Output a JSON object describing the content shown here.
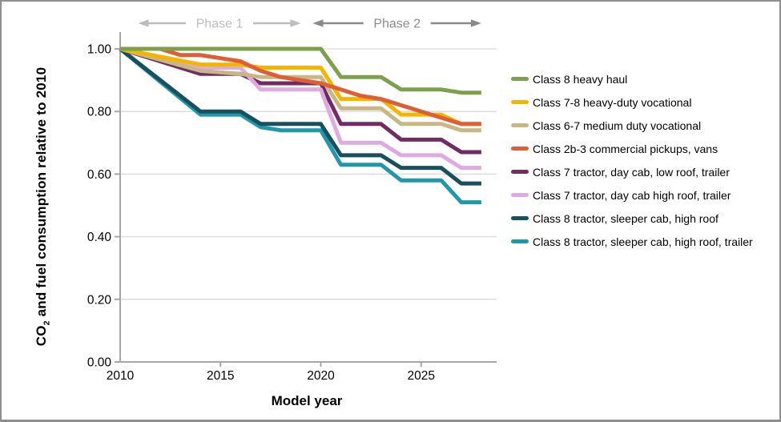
{
  "figure": {
    "y_axis_title": {
      "pre": "CO",
      "sub": "2",
      "post": " and fuel consumption relative to 2010"
    },
    "x_axis_title": "Model year"
  },
  "chart_data": {
    "type": "line",
    "title": "",
    "xlabel": "Model year",
    "ylabel": "CO2 and fuel consumption relative to 2010",
    "xlim": [
      2010,
      2028.8
    ],
    "ylim": [
      0.0,
      1.0
    ],
    "x_ticks": [
      2010,
      2015,
      2020,
      2025
    ],
    "y_ticks": [
      0.0,
      0.2,
      0.4,
      0.6,
      0.8,
      1.0
    ],
    "grid": "horizontal",
    "legend_position": "right",
    "axis_color": "#a6a6a6",
    "gridline_color": "#d9d9d9",
    "phases": [
      {
        "label": "Phase 1",
        "x_start": 2010.9,
        "x_end": 2019.0,
        "color": "#bdbdbd"
      },
      {
        "label": "Phase 2",
        "x_start": 2019.6,
        "x_end": 2028.0,
        "color": "#8a8a8a"
      }
    ],
    "series": [
      {
        "name": "Class 8 heavy haul",
        "color": "#7da04c",
        "points": [
          [
            2010,
            1.0
          ],
          [
            2020,
            1.0
          ],
          [
            2021,
            0.91
          ],
          [
            2023,
            0.91
          ],
          [
            2024,
            0.87
          ],
          [
            2026,
            0.87
          ],
          [
            2027,
            0.86
          ],
          [
            2028,
            0.86
          ]
        ]
      },
      {
        "name": "Class 7-8 heavy-duty vocational",
        "color": "#f2b600",
        "points": [
          [
            2010,
            1.0
          ],
          [
            2014,
            0.95
          ],
          [
            2016,
            0.95
          ],
          [
            2017,
            0.94
          ],
          [
            2020,
            0.94
          ],
          [
            2021,
            0.84
          ],
          [
            2023,
            0.84
          ],
          [
            2024,
            0.79
          ],
          [
            2026,
            0.79
          ],
          [
            2027,
            0.76
          ],
          [
            2028,
            0.76
          ]
        ]
      },
      {
        "name": "Class 6-7 medium duty vocational",
        "color": "#c8b784",
        "points": [
          [
            2010,
            1.0
          ],
          [
            2014,
            0.93
          ],
          [
            2016,
            0.92
          ],
          [
            2017,
            0.91
          ],
          [
            2020,
            0.91
          ],
          [
            2021,
            0.81
          ],
          [
            2023,
            0.81
          ],
          [
            2024,
            0.76
          ],
          [
            2026,
            0.76
          ],
          [
            2027,
            0.74
          ],
          [
            2028,
            0.74
          ]
        ]
      },
      {
        "name": "Class 2b-3 commercial pickups, vans",
        "color": "#dd5f38",
        "points": [
          [
            2010,
            1.0
          ],
          [
            2012,
            1.0
          ],
          [
            2013,
            0.98
          ],
          [
            2014,
            0.98
          ],
          [
            2015,
            0.97
          ],
          [
            2016,
            0.96
          ],
          [
            2017,
            0.93
          ],
          [
            2018,
            0.91
          ],
          [
            2019,
            0.9
          ],
          [
            2020,
            0.89
          ],
          [
            2021,
            0.87
          ],
          [
            2022,
            0.85
          ],
          [
            2023,
            0.84
          ],
          [
            2024,
            0.82
          ],
          [
            2025,
            0.8
          ],
          [
            2026,
            0.78
          ],
          [
            2027,
            0.76
          ],
          [
            2028,
            0.76
          ]
        ]
      },
      {
        "name": "Class 7 tractor, day cab, low roof, trailer",
        "color": "#722b63",
        "points": [
          [
            2010,
            1.0
          ],
          [
            2014,
            0.92
          ],
          [
            2016,
            0.92
          ],
          [
            2017,
            0.89
          ],
          [
            2020,
            0.89
          ],
          [
            2021,
            0.76
          ],
          [
            2023,
            0.76
          ],
          [
            2024,
            0.71
          ],
          [
            2026,
            0.71
          ],
          [
            2027,
            0.67
          ],
          [
            2028,
            0.67
          ]
        ]
      },
      {
        "name": "Class 7 tractor, day cab high roof, trailer",
        "color": "#dfaae1",
        "points": [
          [
            2010,
            1.0
          ],
          [
            2014,
            0.94
          ],
          [
            2016,
            0.94
          ],
          [
            2017,
            0.87
          ],
          [
            2020,
            0.87
          ],
          [
            2021,
            0.7
          ],
          [
            2023,
            0.7
          ],
          [
            2024,
            0.66
          ],
          [
            2026,
            0.66
          ],
          [
            2027,
            0.62
          ],
          [
            2028,
            0.62
          ]
        ]
      },
      {
        "name": "Class 8 tractor, sleeper cab, high roof",
        "color": "#19505e",
        "points": [
          [
            2010,
            1.0
          ],
          [
            2014,
            0.8
          ],
          [
            2016,
            0.8
          ],
          [
            2017,
            0.76
          ],
          [
            2020,
            0.76
          ],
          [
            2021,
            0.66
          ],
          [
            2023,
            0.66
          ],
          [
            2024,
            0.62
          ],
          [
            2026,
            0.62
          ],
          [
            2027,
            0.57
          ],
          [
            2028,
            0.57
          ]
        ]
      },
      {
        "name": "Class 8 tractor, sleeper cab, high roof, trailer",
        "color": "#2097ab",
        "points": [
          [
            2010,
            1.0
          ],
          [
            2014,
            0.79
          ],
          [
            2016,
            0.79
          ],
          [
            2017,
            0.75
          ],
          [
            2018,
            0.74
          ],
          [
            2020,
            0.74
          ],
          [
            2021,
            0.63
          ],
          [
            2023,
            0.63
          ],
          [
            2024,
            0.58
          ],
          [
            2026,
            0.58
          ],
          [
            2027,
            0.51
          ],
          [
            2028,
            0.51
          ]
        ]
      }
    ],
    "draw_order": [
      7,
      6,
      4,
      5,
      2,
      1,
      3,
      0
    ]
  }
}
